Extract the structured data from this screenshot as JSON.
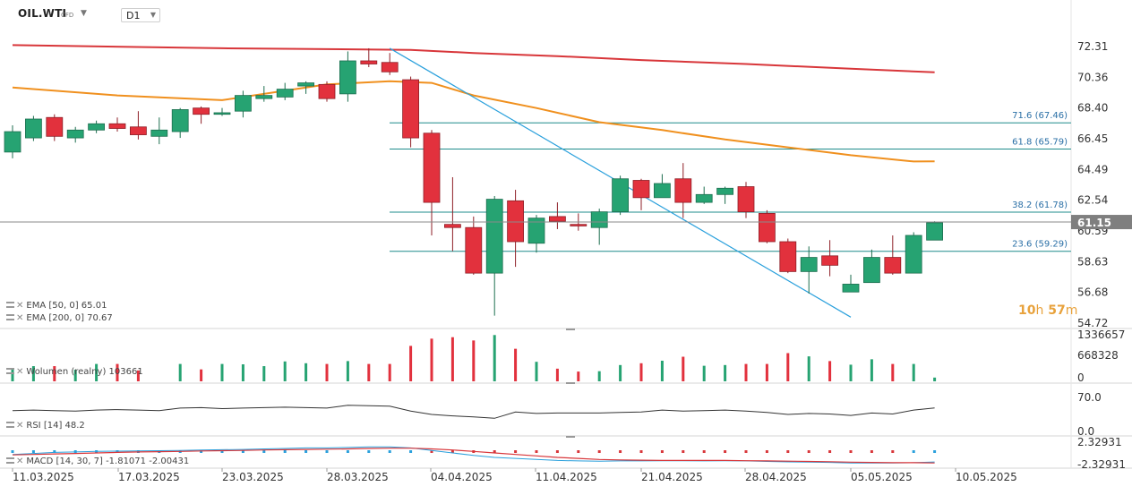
{
  "header": {
    "symbol": "OIL.WTI",
    "symbol_type": "CFD",
    "timeframe": "D1"
  },
  "countdown": {
    "hours": "10",
    "hours_unit": "h",
    "minutes": "57",
    "minutes_unit": "m"
  },
  "colors": {
    "bull": "#26a372",
    "bear": "#e2313d",
    "ema50": "#f0901e",
    "ema200": "#d8363a",
    "fib": "#1f8c8c",
    "trend": "#2aa0dc",
    "price_tag": "#7f7f7f",
    "rsi": "#333333",
    "macd": "#2aa0dc",
    "signal": "#d8363a"
  },
  "indicators": {
    "ema50": {
      "label": "EMA [50, 0]",
      "value": "65.01"
    },
    "ema200": {
      "label": "EMA [200, 0]",
      "value": "70.67"
    },
    "volume": {
      "label": "Wolumen (realny)",
      "value": "103661"
    },
    "rsi": {
      "label": "RSI [14]",
      "value": "48.2"
    },
    "macd": {
      "label": "MACD [14, 30, 7]",
      "value1": "-1.81071",
      "value2": "-2.00431"
    }
  },
  "chart_data": {
    "type": "candlestick",
    "instrument": "OIL.WTI",
    "timeframe": "D1",
    "ylim": [
      54.72,
      72.31
    ],
    "price_ticks": [
      "72.31",
      "70.36",
      "68.40",
      "66.45",
      "64.49",
      "62.54",
      "60.59",
      "58.63",
      "56.68",
      "54.72"
    ],
    "x_ticks": [
      "11.03.2025",
      "17.03.2025",
      "23.03.2025",
      "28.03.2025",
      "04.04.2025",
      "11.04.2025",
      "21.04.2025",
      "28.04.2025",
      "05.05.2025",
      "10.05.2025"
    ],
    "current_price": "61.15",
    "candles": [
      {
        "o": 65.6,
        "h": 67.3,
        "l": 65.2,
        "c": 66.9
      },
      {
        "o": 66.5,
        "h": 67.9,
        "l": 66.3,
        "c": 67.7
      },
      {
        "o": 67.8,
        "h": 68.0,
        "l": 66.3,
        "c": 66.6
      },
      {
        "o": 66.5,
        "h": 67.2,
        "l": 66.2,
        "c": 67.0
      },
      {
        "o": 67.0,
        "h": 67.6,
        "l": 66.8,
        "c": 67.4
      },
      {
        "o": 67.4,
        "h": 67.8,
        "l": 66.9,
        "c": 67.1
      },
      {
        "o": 67.2,
        "h": 68.2,
        "l": 66.4,
        "c": 66.7
      },
      {
        "o": 66.6,
        "h": 67.8,
        "l": 66.1,
        "c": 67.0
      },
      {
        "o": 66.9,
        "h": 68.4,
        "l": 66.5,
        "c": 68.3
      },
      {
        "o": 68.4,
        "h": 68.5,
        "l": 67.4,
        "c": 68.0
      },
      {
        "o": 68.0,
        "h": 68.4,
        "l": 67.9,
        "c": 68.1
      },
      {
        "o": 68.2,
        "h": 69.5,
        "l": 67.8,
        "c": 69.2
      },
      {
        "o": 69.0,
        "h": 69.8,
        "l": 68.8,
        "c": 69.2
      },
      {
        "o": 69.1,
        "h": 70.0,
        "l": 68.9,
        "c": 69.6
      },
      {
        "o": 69.8,
        "h": 70.1,
        "l": 69.3,
        "c": 70.0
      },
      {
        "o": 69.9,
        "h": 70.1,
        "l": 68.8,
        "c": 69.0
      },
      {
        "o": 69.3,
        "h": 72.0,
        "l": 68.8,
        "c": 71.4
      },
      {
        "o": 71.4,
        "h": 72.2,
        "l": 71.0,
        "c": 71.2
      },
      {
        "o": 71.3,
        "h": 71.9,
        "l": 70.5,
        "c": 70.7
      },
      {
        "o": 70.2,
        "h": 70.4,
        "l": 65.9,
        "c": 66.5
      },
      {
        "o": 66.8,
        "h": 67.0,
        "l": 60.3,
        "c": 62.4
      },
      {
        "o": 61.0,
        "h": 64.0,
        "l": 59.3,
        "c": 60.8
      },
      {
        "o": 60.8,
        "h": 61.5,
        "l": 57.8,
        "c": 57.9
      },
      {
        "o": 57.9,
        "h": 62.8,
        "l": 55.2,
        "c": 62.6
      },
      {
        "o": 62.5,
        "h": 63.2,
        "l": 58.3,
        "c": 59.9
      },
      {
        "o": 59.8,
        "h": 61.6,
        "l": 59.2,
        "c": 61.4
      },
      {
        "o": 61.5,
        "h": 62.4,
        "l": 60.7,
        "c": 61.2
      },
      {
        "o": 61.0,
        "h": 61.7,
        "l": 60.6,
        "c": 60.9
      },
      {
        "o": 60.8,
        "h": 62.0,
        "l": 59.7,
        "c": 61.8
      },
      {
        "o": 61.8,
        "h": 64.1,
        "l": 61.6,
        "c": 63.9
      },
      {
        "o": 63.8,
        "h": 63.9,
        "l": 61.9,
        "c": 62.7
      },
      {
        "o": 62.7,
        "h": 64.2,
        "l": 62.7,
        "c": 63.6
      },
      {
        "o": 63.9,
        "h": 64.9,
        "l": 61.4,
        "c": 62.4
      },
      {
        "o": 62.4,
        "h": 63.4,
        "l": 62.3,
        "c": 62.9
      },
      {
        "o": 62.9,
        "h": 63.4,
        "l": 62.3,
        "c": 63.3
      },
      {
        "o": 63.4,
        "h": 63.7,
        "l": 61.4,
        "c": 61.8
      },
      {
        "o": 61.7,
        "h": 61.9,
        "l": 59.8,
        "c": 59.9
      },
      {
        "o": 59.9,
        "h": 60.1,
        "l": 57.9,
        "c": 58.0
      },
      {
        "o": 58.0,
        "h": 59.6,
        "l": 56.6,
        "c": 58.9
      },
      {
        "o": 59.0,
        "h": 60.0,
        "l": 57.7,
        "c": 58.4
      },
      {
        "o": 56.7,
        "h": 57.8,
        "l": 56.7,
        "c": 57.2
      },
      {
        "o": 57.3,
        "h": 59.4,
        "l": 57.3,
        "c": 58.9
      },
      {
        "o": 58.9,
        "h": 60.3,
        "l": 57.8,
        "c": 57.9
      },
      {
        "o": 57.9,
        "h": 60.5,
        "l": 57.9,
        "c": 60.3
      },
      {
        "o": 60.0,
        "h": 61.2,
        "l": 60.0,
        "c": 61.1
      }
    ],
    "ema50": [
      [
        0,
        69.7
      ],
      [
        5,
        69.2
      ],
      [
        10,
        68.9
      ],
      [
        15,
        69.9
      ],
      [
        18,
        70.1
      ],
      [
        20,
        70.0
      ],
      [
        22,
        69.2
      ],
      [
        25,
        68.4
      ],
      [
        28,
        67.5
      ],
      [
        31,
        67.0
      ],
      [
        34,
        66.4
      ],
      [
        37,
        65.9
      ],
      [
        40,
        65.4
      ],
      [
        43,
        65.0
      ],
      [
        44,
        65.01
      ]
    ],
    "ema200": [
      [
        0,
        72.4
      ],
      [
        10,
        72.2
      ],
      [
        19,
        72.1
      ],
      [
        22,
        71.9
      ],
      [
        26,
        71.7
      ],
      [
        30,
        71.45
      ],
      [
        35,
        71.2
      ],
      [
        40,
        70.9
      ],
      [
        44,
        70.67
      ]
    ],
    "fib_levels": [
      {
        "label": "71.6 (67.46)",
        "value": 67.46
      },
      {
        "label": "61.8 (65.79)",
        "value": 65.79
      },
      {
        "label": "38.2 (61.78)",
        "value": 61.78
      },
      {
        "label": "23.6 (59.29)",
        "value": 59.29
      }
    ],
    "trendline": [
      [
        18,
        72.2
      ],
      [
        40,
        55.1
      ]
    ],
    "volume": {
      "ticks": [
        "1336657",
        "668328",
        "0"
      ],
      "max": 1336657,
      "values": [
        330000,
        420000,
        420000,
        320000,
        480000,
        480000,
        300000,
        0,
        480000,
        330000,
        480000,
        470000,
        420000,
        550000,
        500000,
        480000,
        560000,
        480000,
        480000,
        980000,
        1180000,
        1220000,
        1130000,
        1280000,
        900000,
        540000,
        350000,
        270000,
        280000,
        450000,
        500000,
        570000,
        680000,
        430000,
        450000,
        480000,
        480000,
        780000,
        690000,
        560000,
        460000,
        610000,
        480000,
        480000,
        103661
      ]
    },
    "rsi": {
      "ticks": [
        "70.0",
        "0.0"
      ],
      "ylim": [
        0,
        100
      ],
      "values": [
        43,
        44,
        43,
        42,
        44,
        45,
        44,
        43,
        48,
        49,
        47,
        48,
        49,
        50,
        49,
        48,
        54,
        53,
        52,
        42,
        35,
        32,
        30,
        27,
        40,
        37,
        38,
        38,
        38,
        39,
        40,
        44,
        42,
        43,
        44,
        42,
        39,
        35,
        37,
        36,
        33,
        38,
        36,
        44,
        48.2
      ]
    },
    "macd": {
      "ticks": [
        "2.32931",
        "-2.32931"
      ],
      "ylim": [
        -2.32931,
        2.32931
      ],
      "macd": [
        -0.3,
        -0.1,
        0.1,
        0.2,
        0.3,
        0.35,
        0.4,
        0.45,
        0.5,
        0.6,
        0.65,
        0.7,
        0.8,
        0.9,
        1.0,
        1.0,
        1.1,
        1.2,
        1.2,
        1.0,
        0.5,
        0.0,
        -0.5,
        -0.9,
        -1.1,
        -1.3,
        -1.5,
        -1.6,
        -1.65,
        -1.6,
        -1.6,
        -1.55,
        -1.55,
        -1.6,
        -1.55,
        -1.6,
        -1.7,
        -1.8,
        -1.85,
        -1.9,
        -2.0,
        -2.0,
        -2.0,
        -1.95,
        -1.81
      ],
      "signal": [
        -0.4,
        -0.3,
        -0.2,
        -0.1,
        0.0,
        0.1,
        0.2,
        0.25,
        0.3,
        0.4,
        0.45,
        0.5,
        0.6,
        0.65,
        0.7,
        0.75,
        0.8,
        0.9,
        0.95,
        0.95,
        0.8,
        0.6,
        0.3,
        0.0,
        -0.3,
        -0.6,
        -0.9,
        -1.1,
        -1.3,
        -1.4,
        -1.45,
        -1.5,
        -1.5,
        -1.5,
        -1.5,
        -1.55,
        -1.6,
        -1.65,
        -1.7,
        -1.75,
        -1.85,
        -1.9,
        -1.95,
        -1.95,
        -2.0
      ]
    }
  }
}
